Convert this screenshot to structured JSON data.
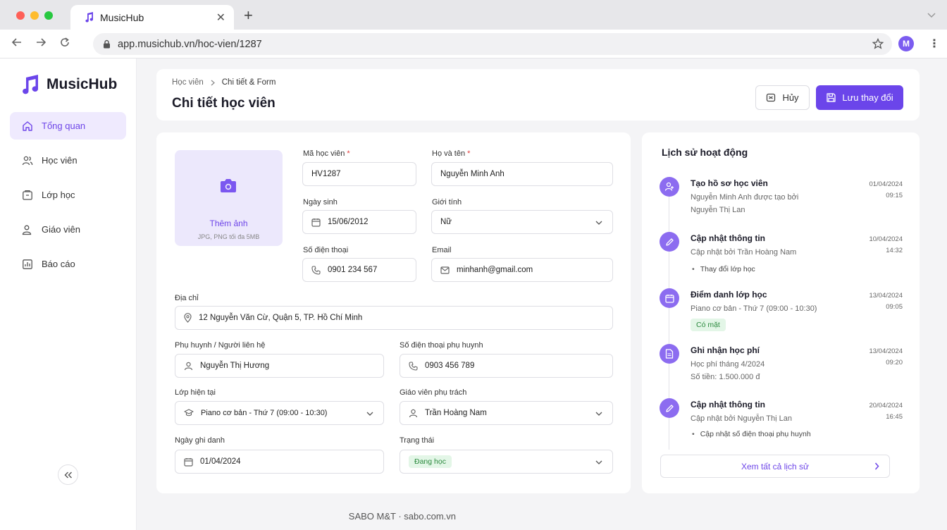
{
  "browser": {
    "tab_title": "MusicHub",
    "url": "app.musichub.vn/hoc-vien/1287",
    "profile_initial": "M"
  },
  "sidebar": {
    "brand": "MusicHub",
    "items": [
      {
        "label": "Tổng quan",
        "icon": "home-icon",
        "active": true
      },
      {
        "label": "Học viên",
        "icon": "users-icon"
      },
      {
        "label": "Lớp học",
        "icon": "class-icon"
      },
      {
        "label": "Giáo viên",
        "icon": "teacher-icon"
      },
      {
        "label": "Báo cáo",
        "icon": "report-icon"
      }
    ]
  },
  "header": {
    "breadcrumb": [
      "Học viên",
      "Chi tiết & Form"
    ],
    "title": "Chi tiết học viên",
    "cancel_label": "Hủy",
    "save_label": "Lưu thay đổi"
  },
  "form": {
    "photo_label": "Thêm ảnh",
    "photo_hint": "JPG, PNG tối đa 5MB",
    "student_id_label": "Mã học viên",
    "student_id": "HV1287",
    "fullname_label": "Họ và tên",
    "fullname": "Nguyễn Minh Anh",
    "dob_label": "Ngày sinh",
    "dob": "15/06/2012",
    "gender_label": "Giới tính",
    "gender": "Nữ",
    "phone_label": "Số điện thoại",
    "phone": "0901 234 567",
    "email_label": "Email",
    "email": "minhanh@gmail.com",
    "address_label": "Địa chỉ",
    "address": "12 Nguyễn Văn Cừ, Quận 5, TP. Hồ Chí Minh",
    "parent_label": "Phụ huynh / Người liên hệ",
    "parent": "Nguyễn Thị Hương",
    "parent_phone_label": "Số điện thoại phụ huynh",
    "parent_phone": "0903 456 789",
    "class_label": "Lớp hiện tại",
    "class": "Piano cơ bản - Thứ 7 (09:00 - 10:30)",
    "teacher_label": "Giáo viên phụ trách",
    "teacher": "Trần Hoàng Nam",
    "enroll_label": "Ngày ghi danh",
    "enroll": "01/04/2024",
    "status_label": "Trạng thái",
    "status": "Đang học",
    "status_color": "#2b8a3e"
  },
  "history": {
    "title": "Lịch sử hoạt động",
    "items": [
      {
        "title": "Tạo hồ sơ học viên",
        "sub1": "Nguyễn Minh Anh được tạo bởi",
        "sub2": "Nguyễn Thị Lan",
        "date": "01/04/2024",
        "time": "09:15"
      },
      {
        "title": "Cập nhật thông tin",
        "sub1": "Cập nhật bởi Trần Hoàng Nam",
        "bullet": "Thay đổi lớp học",
        "date": "10/04/2024",
        "time": "14:32"
      },
      {
        "title": "Điểm danh lớp học",
        "sub1": "Piano cơ bản - Thứ 7 (09:00 - 10:30)",
        "badge": "Có mặt",
        "date": "13/04/2024",
        "time": "09:05"
      },
      {
        "title": "Ghi nhận học phí",
        "sub1": "Học phí tháng 4/2024",
        "sub2": "Số tiền: 1.500.000 đ",
        "date": "13/04/2024",
        "time": "09:20"
      },
      {
        "title": "Cập nhật thông tin",
        "sub1": "Cập nhật bởi Nguyễn Thị Lan",
        "bullet": "Cập nhật số điện thoại phụ huynh",
        "date": "20/04/2024",
        "time": "16:45"
      }
    ],
    "view_all": "Xem tất cả lịch sử"
  },
  "footer": "SABO M&T · sabo.com.vn",
  "colors": {
    "accent": "#6b45ea",
    "accent_light": "#efeafe"
  }
}
